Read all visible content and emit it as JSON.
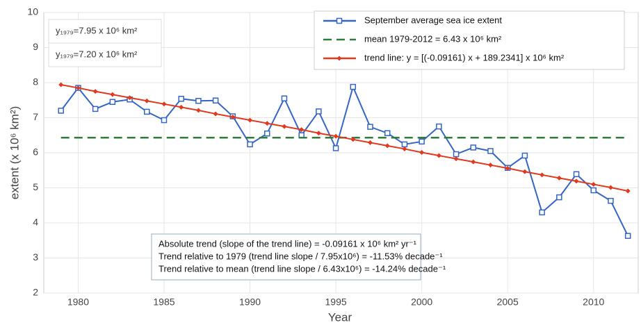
{
  "chart_data": {
    "type": "line",
    "xlabel": "Year",
    "ylabel": "extent (x 10⁶ km²)",
    "xlim": [
      1978,
      2012.6
    ],
    "xticks": [
      1980,
      1985,
      1990,
      1995,
      2000,
      2005,
      2010
    ],
    "ylim": [
      2,
      10
    ],
    "yticks": [
      2,
      3,
      4,
      5,
      6,
      7,
      8,
      9,
      10
    ],
    "grid": true,
    "legend": "upper right",
    "series": [
      {
        "name": "September average sea ice extent",
        "color": "#3366c4",
        "marker": "square",
        "dash": false,
        "x": [
          1979,
          1980,
          1981,
          1982,
          1983,
          1984,
          1985,
          1986,
          1987,
          1988,
          1989,
          1990,
          1991,
          1992,
          1993,
          1994,
          1995,
          1996,
          1997,
          1998,
          1999,
          2000,
          2001,
          2002,
          2003,
          2004,
          2005,
          2006,
          2007,
          2008,
          2009,
          2010,
          2011,
          2012
        ],
        "values": [
          7.2,
          7.85,
          7.25,
          7.45,
          7.52,
          7.17,
          6.93,
          7.54,
          7.48,
          7.49,
          7.04,
          6.24,
          6.55,
          7.55,
          6.5,
          7.18,
          6.13,
          7.88,
          6.74,
          6.56,
          6.24,
          6.32,
          6.75,
          5.96,
          6.15,
          6.05,
          5.57,
          5.92,
          4.3,
          4.73,
          5.39,
          4.93,
          4.63,
          3.63
        ]
      },
      {
        "name": "mean 1979-2012 = 6.43 x 10⁶ km²",
        "color": "#2e7d3a",
        "marker": "none",
        "dash": true,
        "x": [
          1979,
          2012
        ],
        "values": [
          6.43,
          6.43
        ]
      },
      {
        "name": "trend line: y = [(-0.09161) x + 189.2341] x 10⁶ km²",
        "color": "#e0391e",
        "marker": "diamond",
        "dash": false,
        "x": [
          1979,
          1980,
          1981,
          1982,
          1983,
          1984,
          1985,
          1986,
          1987,
          1988,
          1989,
          1990,
          1991,
          1992,
          1993,
          1994,
          1995,
          1996,
          1997,
          1998,
          1999,
          2000,
          2001,
          2002,
          2003,
          2004,
          2005,
          2006,
          2007,
          2008,
          2009,
          2010,
          2011,
          2012
        ],
        "values": [
          7.94,
          7.85,
          7.75,
          7.66,
          7.57,
          7.48,
          7.39,
          7.3,
          7.21,
          7.11,
          7.02,
          6.93,
          6.84,
          6.75,
          6.66,
          6.56,
          6.47,
          6.38,
          6.29,
          6.2,
          6.11,
          6.01,
          5.92,
          5.83,
          5.74,
          5.65,
          5.56,
          5.46,
          5.37,
          5.28,
          5.19,
          5.1,
          5.01,
          4.91
        ]
      }
    ],
    "annotations": [
      {
        "text": "y₁₉₇₉=7.95 x 10⁶ km²",
        "color": "#e0391e"
      },
      {
        "text": "y₁₉₇₉=7.20 x 10⁶ km²",
        "color": "#3366c4"
      }
    ],
    "notes": [
      "Absolute trend (slope of the trend line) = -0.09161 x 10⁶ km² yr⁻¹",
      "Trend relative to 1979 (trend line slope / 7.95x10⁶) = -11.53% decade⁻¹",
      "Trend relative to mean (trend line slope / 6.43x10⁶) = -14.24% decade⁻¹"
    ]
  }
}
